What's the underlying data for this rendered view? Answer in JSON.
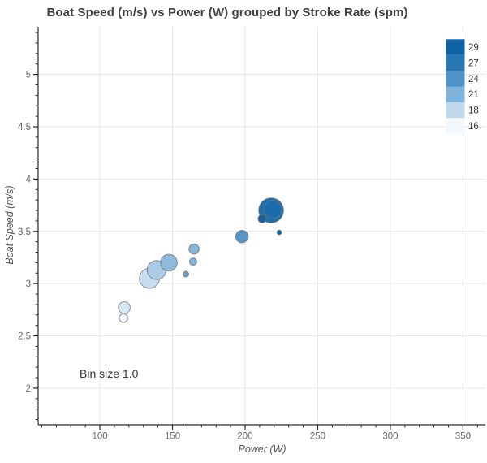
{
  "title": "Boat Speed (m/s) vs Power (W) grouped by Stroke Rate (spm)",
  "annotation": "Bin size 1.0",
  "legend": {
    "items": [
      {
        "label": "29",
        "color": "#0d62a5"
      },
      {
        "label": "27",
        "color": "#2878b5"
      },
      {
        "label": "24",
        "color": "#4e94c8"
      },
      {
        "label": "21",
        "color": "#7fb3db"
      },
      {
        "label": "18",
        "color": "#bfd8ec"
      },
      {
        "label": "16",
        "color": "#f3f8fd"
      }
    ]
  },
  "colors": {
    "background": "#ffffff",
    "grid": "#e5e5e5",
    "axis": "#2b2b2b",
    "tick_label": "#666666",
    "title_text": "#3f3f3f",
    "axis_title": "#555555",
    "annotation_text": "#333333",
    "legend_label": "#333333",
    "point_outline": "#6e6e6e"
  },
  "chart_data": {
    "type": "scatter",
    "title": "Boat Speed (m/s) vs Power (W) grouped by Stroke Rate (spm)",
    "xlabel": "Power (W)",
    "ylabel": "Boat Speed (m/s)",
    "xlim": [
      57.5,
      365.4
    ],
    "ylim": [
      1.65,
      5.455
    ],
    "x_ticks": [
      100,
      150,
      200,
      250,
      300,
      350
    ],
    "y_ticks": [
      2,
      2.5,
      3,
      3.5,
      4,
      4.5,
      5
    ],
    "x_minor_step": 10,
    "y_minor_step": 0.1,
    "grid": "major",
    "legend_position": "top-right-inside",
    "size_encoding": "sample count per bin (Bin size 1.0)",
    "points": [
      {
        "power": 116.2,
        "speed": 2.67,
        "stroke_rate": 16,
        "r": 5.3,
        "color": "#edf4fb"
      },
      {
        "power": 116.8,
        "speed": 2.77,
        "stroke_rate": 17,
        "r": 7.3,
        "color": "#d9e8f5"
      },
      {
        "power": 134.1,
        "speed": 3.05,
        "stroke_rate": 18,
        "r": 12.3,
        "color": "#c7ddf0"
      },
      {
        "power": 139.1,
        "speed": 3.13,
        "stroke_rate": 19,
        "r": 11.7,
        "color": "#accbe7"
      },
      {
        "power": 147.5,
        "speed": 3.2,
        "stroke_rate": 21,
        "r": 10.3,
        "color": "#8fbade"
      },
      {
        "power": 159.2,
        "speed": 3.09,
        "stroke_rate": 23,
        "r": 3.5,
        "color": "#6ba3ce"
      },
      {
        "power": 164.2,
        "speed": 3.21,
        "stroke_rate": 22,
        "r": 4.5,
        "color": "#7fb0d7"
      },
      {
        "power": 164.8,
        "speed": 3.33,
        "stroke_rate": 22,
        "r": 6.3,
        "color": "#86b5da"
      },
      {
        "power": 197.8,
        "speed": 3.45,
        "stroke_rate": 24,
        "r": 7.7,
        "color": "#5896c9"
      },
      {
        "power": 217.9,
        "speed": 3.7,
        "stroke_rate": 28,
        "r": 15.3,
        "color": "#1e6fae"
      },
      {
        "power": 219.0,
        "speed": 3.71,
        "stroke_rate": 28,
        "r": 11.0,
        "color": "#1a6cae"
      },
      {
        "power": 211.7,
        "speed": 3.62,
        "stroke_rate": 29,
        "r": 5.0,
        "color": "#15619f"
      },
      {
        "power": 223.5,
        "speed": 3.49,
        "stroke_rate": 29,
        "r": 2.8,
        "color": "#0d5ea2"
      }
    ]
  }
}
